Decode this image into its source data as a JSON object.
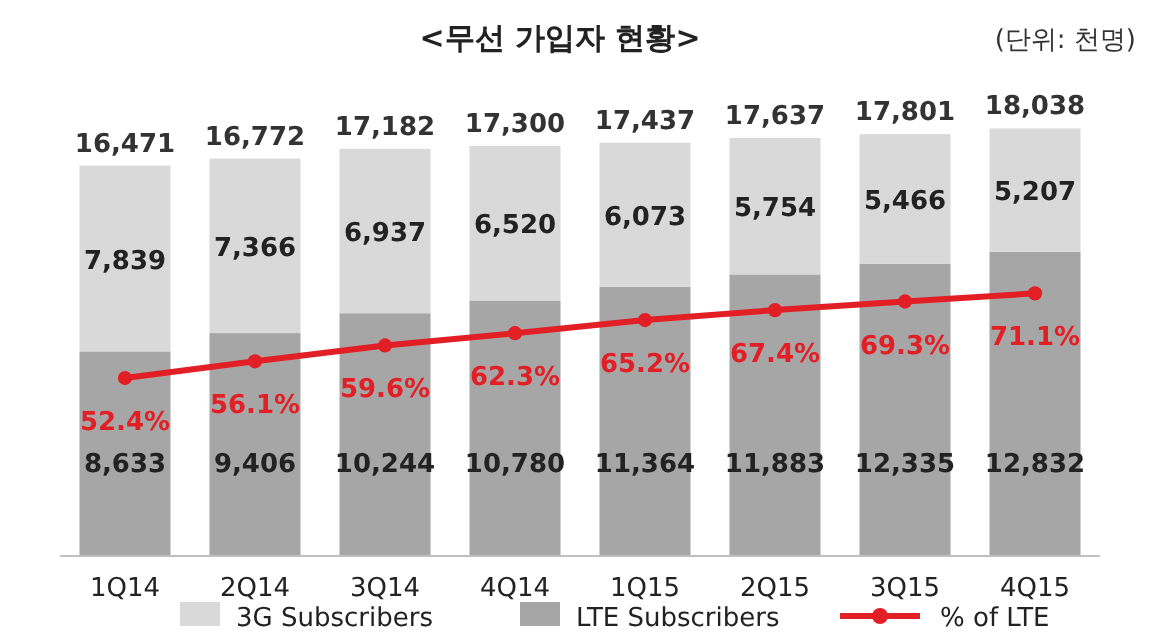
{
  "chart_data": {
    "type": "bar",
    "title": "<무선 가입자 현황>",
    "annotations": [
      "(단위: 천명)"
    ],
    "categories": [
      "1Q14",
      "2Q14",
      "3Q14",
      "4Q14",
      "1Q15",
      "2Q15",
      "3Q15",
      "4Q15"
    ],
    "stacked": true,
    "tick_labels": "x",
    "legend": "bottom",
    "marker": "circle",
    "line_style": "solid",
    "totals": [
      "16,471",
      "16,772",
      "17,182",
      "17,300",
      "17,437",
      "17,637",
      "17,801",
      "18,038"
    ],
    "series": [
      {
        "name": "LTE Subscribers",
        "color": "#a6a6a6",
        "values": [
          8633,
          9406,
          10244,
          10780,
          11364,
          11883,
          12335,
          12832
        ],
        "value_labels": [
          "8,633",
          "9,406",
          "10,244",
          "10,780",
          "11,364",
          "11,883",
          "12,335",
          "12,832"
        ]
      },
      {
        "name": "3G Subscribers",
        "color": "#d9d9d9",
        "values": [
          7839,
          7366,
          6937,
          6520,
          6073,
          5754,
          5466,
          5207
        ],
        "value_labels": [
          "7,839",
          "7,366",
          "6,937",
          "6,520",
          "6,073",
          "5,754",
          "5,466",
          "5,207"
        ]
      },
      {
        "name": "% of LTE",
        "type": "line",
        "axis": "y2",
        "color": "#e31f26",
        "values": [
          52.4,
          56.1,
          59.6,
          62.3,
          65.2,
          67.4,
          69.3,
          71.1
        ],
        "value_labels": [
          "52.4%",
          "56.1%",
          "59.6%",
          "62.3%",
          "65.2%",
          "67.4%",
          "69.3%",
          "71.1%"
        ]
      }
    ]
  }
}
